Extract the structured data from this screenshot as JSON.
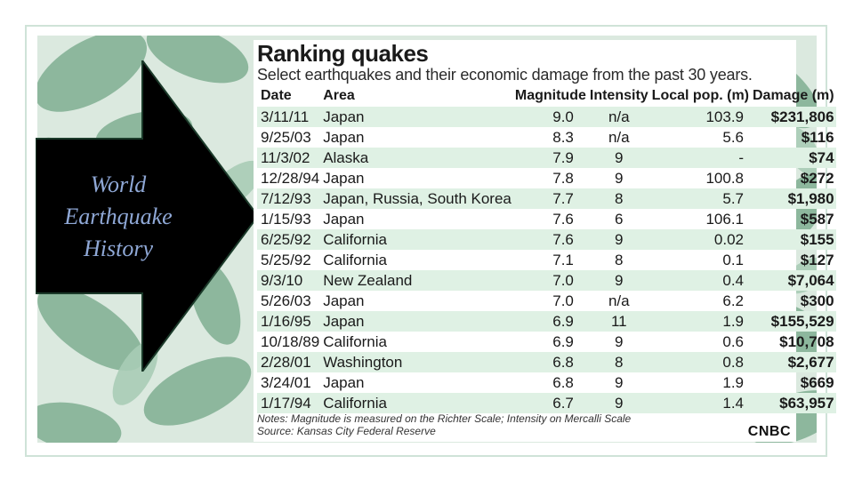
{
  "slide": {
    "arrow_text": [
      "World",
      "Earthquake",
      "History"
    ]
  },
  "card": {
    "title": "Ranking quakes",
    "subtitle": "Select earthquakes and their economic damage from the past 30 years.",
    "columns": [
      "Date",
      "Area",
      "Magnitude",
      "Intensity",
      "Local pop. (m)",
      "Damage (m)"
    ],
    "rows": [
      [
        "3/11/11",
        "Japan",
        "9.0",
        "n/a",
        "103.9",
        "$231,806"
      ],
      [
        "9/25/03",
        "Japan",
        "8.3",
        "n/a",
        "5.6",
        "$116"
      ],
      [
        "11/3/02",
        "Alaska",
        "7.9",
        "9",
        "-",
        "$74"
      ],
      [
        "12/28/94",
        "Japan",
        "7.8",
        "9",
        "100.8",
        "$272"
      ],
      [
        "7/12/93",
        "Japan, Russia, South Korea",
        "7.7",
        "8",
        "5.7",
        "$1,980"
      ],
      [
        "1/15/93",
        "Japan",
        "7.6",
        "6",
        "106.1",
        "$587"
      ],
      [
        "6/25/92",
        "California",
        "7.6",
        "9",
        "0.02",
        "$155"
      ],
      [
        "5/25/92",
        "California",
        "7.1",
        "8",
        "0.1",
        "$127"
      ],
      [
        "9/3/10",
        "New Zealand",
        "7.0",
        "9",
        "0.4",
        "$7,064"
      ],
      [
        "5/26/03",
        "Japan",
        "7.0",
        "n/a",
        "6.2",
        "$300"
      ],
      [
        "1/16/95",
        "Japan",
        "6.9",
        "11",
        "1.9",
        "$155,529"
      ],
      [
        "10/18/89",
        "California",
        "6.9",
        "9",
        "0.6",
        "$10,708"
      ],
      [
        "2/28/01",
        "Washington",
        "6.8",
        "8",
        "0.8",
        "$2,677"
      ],
      [
        "3/24/01",
        "Japan",
        "6.8",
        "9",
        "1.9",
        "$669"
      ],
      [
        "1/17/94",
        "California",
        "6.7",
        "9",
        "1.4",
        "$63,957"
      ]
    ],
    "notes": "Notes: Magnitude is measured on the Richter Scale; Intensity on Mercalli Scale",
    "source": "Source: Kansas City Federal Reserve",
    "logo": "CNBC"
  },
  "colors": {
    "row_stripe": "#dff1e4",
    "arrow_fill": "#000000",
    "arrow_text": "#8fa8d6",
    "leaf": "#7fae92"
  }
}
